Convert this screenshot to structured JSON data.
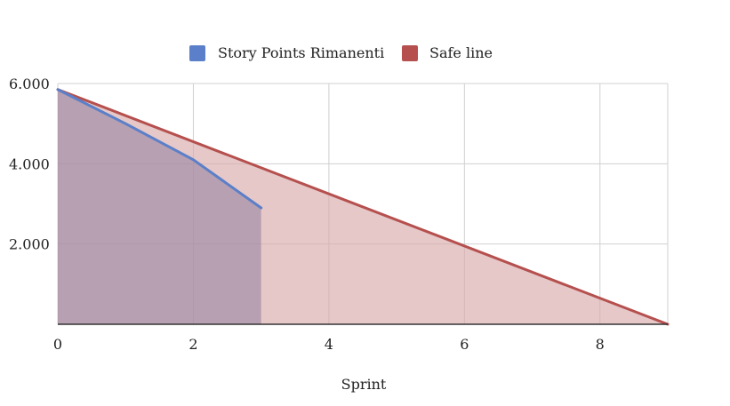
{
  "chart_data": {
    "type": "area",
    "title": "",
    "xlabel": "Sprint",
    "ylabel": "",
    "xlim": [
      0,
      9
    ],
    "ylim": [
      0,
      6000
    ],
    "x_ticks": [
      0,
      2,
      4,
      6,
      8
    ],
    "x_tick_labels": [
      "0",
      "2",
      "4",
      "6",
      "8"
    ],
    "y_ticks": [
      2000,
      4000,
      6000
    ],
    "y_tick_labels": [
      "2.000",
      "4.000",
      "6.000"
    ],
    "grid": true,
    "legend_position": "top-center",
    "series": [
      {
        "name": "Story Points Rimanenti",
        "color": "#5b7fc8",
        "fill": "#8f7fa0",
        "x": [
          0,
          1,
          2,
          3
        ],
        "y": [
          5850,
          5000,
          4100,
          2900
        ]
      },
      {
        "name": "Safe line",
        "color": "#b5504e",
        "fill": "#d9aaaa",
        "x": [
          0,
          9
        ],
        "y": [
          5850,
          0
        ]
      }
    ]
  }
}
